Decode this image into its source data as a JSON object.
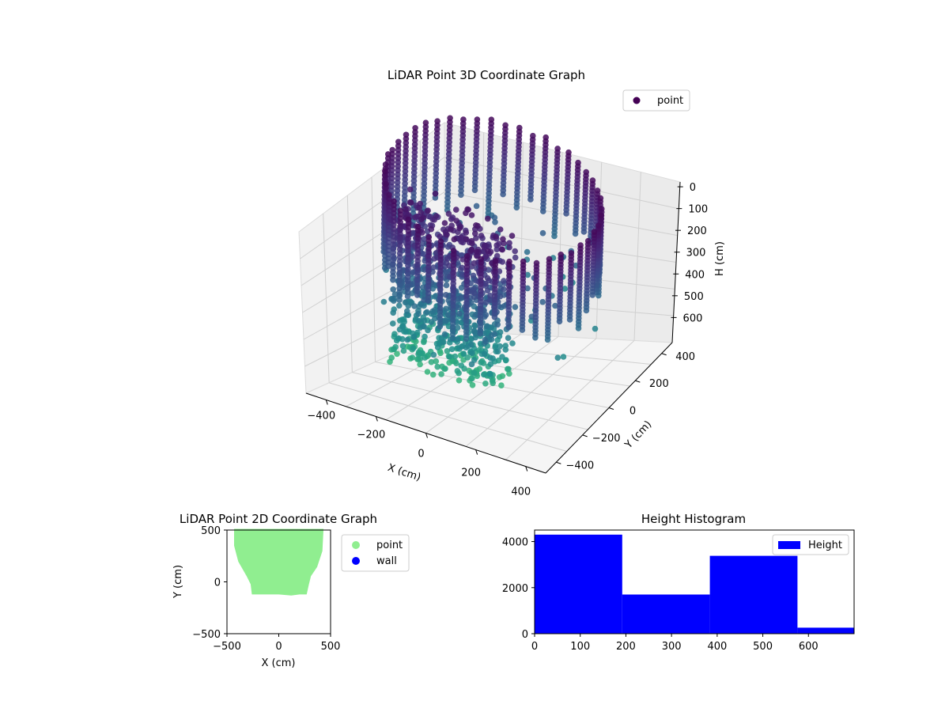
{
  "figure": {
    "background": "#ffffff"
  },
  "chart_data": [
    {
      "type": "scatter",
      "projection": "3d",
      "title": "LiDAR Point 3D Coordinate Graph",
      "xlabel": "X (cm)",
      "ylabel": "Y (cm)",
      "zlabel": "H (cm)",
      "xlim": [
        -480,
        480
      ],
      "ylim": [
        -480,
        480
      ],
      "zlim": [
        0,
        700
      ],
      "z_inverted": true,
      "x_ticks": [
        "−400",
        "−200",
        "0",
        "200",
        "400"
      ],
      "y_ticks": [
        "−400",
        "−200",
        "0",
        "200",
        "400"
      ],
      "z_ticks": [
        "0",
        "100",
        "200",
        "300",
        "400",
        "500",
        "600"
      ],
      "grid": true,
      "legend": {
        "placement": "upper-right",
        "entries": [
          {
            "label": "point",
            "color": "#440154"
          }
        ]
      },
      "colormap": "viridis",
      "series": [
        {
          "name": "point",
          "description_points": [
            {
              "x": -150,
              "y": -100,
              "h": 60
            },
            {
              "x": -50,
              "y": -120,
              "h": 80
            },
            {
              "x": 50,
              "y": -80,
              "h": 90
            },
            {
              "x": -100,
              "y": 40,
              "h": 120
            },
            {
              "x": 200,
              "y": 100,
              "h": 150
            },
            {
              "x": 300,
              "y": 200,
              "h": 180
            },
            {
              "x": 350,
              "y": 300,
              "h": 220
            },
            {
              "x": 250,
              "y": 380,
              "h": 240
            },
            {
              "x": 100,
              "y": 420,
              "h": 260
            },
            {
              "x": -50,
              "y": 430,
              "h": 280
            },
            {
              "x": -200,
              "y": 400,
              "h": 300
            },
            {
              "x": -300,
              "y": 300,
              "h": 320
            },
            {
              "x": 150,
              "y": 250,
              "h": 360
            },
            {
              "x": 250,
              "y": 150,
              "h": 420
            },
            {
              "x": 300,
              "y": 50,
              "h": 460
            },
            {
              "x": 380,
              "y": 0,
              "h": 520
            }
          ]
        }
      ]
    },
    {
      "type": "scatter",
      "title": "LiDAR Point 2D Coordinate Graph",
      "xlabel": "X (cm)",
      "ylabel": "Y (cm)",
      "xlim": [
        -500,
        500
      ],
      "ylim": [
        -500,
        500
      ],
      "x_ticks": [
        "−500",
        "0",
        "500"
      ],
      "y_ticks": [
        "−500",
        "0",
        "500"
      ],
      "legend": {
        "placement": "outside-right",
        "entries": [
          {
            "label": "point",
            "color": "#90ee90"
          },
          {
            "label": "wall",
            "color": "#0000ff"
          }
        ]
      },
      "series": [
        {
          "name": "point",
          "color": "#90ee90",
          "outline": [
            [
              -420,
              500
            ],
            [
              420,
              500
            ],
            [
              410,
              300
            ],
            [
              360,
              150
            ],
            [
              300,
              60
            ],
            [
              280,
              -20
            ],
            [
              260,
              -110
            ],
            [
              200,
              -110
            ],
            [
              120,
              -120
            ],
            [
              0,
              -110
            ],
            [
              -120,
              -110
            ],
            [
              -250,
              -110
            ],
            [
              -260,
              -20
            ],
            [
              -300,
              60
            ],
            [
              -380,
              200
            ],
            [
              -420,
              350
            ]
          ]
        },
        {
          "name": "wall",
          "color": "#0000ff",
          "values": []
        }
      ]
    },
    {
      "type": "bar",
      "title": "Height Histogram",
      "xlim": [
        0,
        700
      ],
      "ylim": [
        0,
        4500
      ],
      "x_ticks": [
        "0",
        "100",
        "200",
        "300",
        "400",
        "500",
        "600"
      ],
      "y_ticks": [
        "0",
        "2000",
        "4000"
      ],
      "legend": {
        "placement": "upper-right",
        "entries": [
          {
            "label": "Height",
            "color": "#0000ff"
          }
        ]
      },
      "bar_color": "#0000ff",
      "bins": [
        {
          "from": 0,
          "to": 192,
          "count": 4300
        },
        {
          "from": 192,
          "to": 384,
          "count": 1700
        },
        {
          "from": 384,
          "to": 576,
          "count": 3380
        },
        {
          "from": 576,
          "to": 700,
          "count": 260
        }
      ]
    }
  ]
}
